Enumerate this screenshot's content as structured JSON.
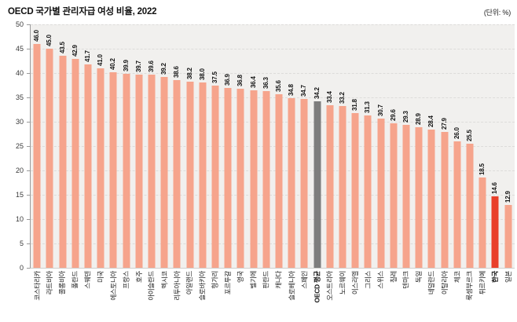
{
  "header": {
    "title": "OECD 국가별 관리자급 여성 비율, 2022",
    "unit": "(단위: %)"
  },
  "chart_data": {
    "type": "bar",
    "title": "OECD 국가별 관리자급 여성 비율, 2022",
    "unit_label": "(단위: %)",
    "categories": [
      "코스타리카",
      "라트비아",
      "콜롬비아",
      "폴란드",
      "스웨덴",
      "미국",
      "에스토니아",
      "프랑스",
      "호주",
      "아이슬란드",
      "멕시코",
      "리투아니아",
      "아일랜드",
      "슬로바키아",
      "헝가리",
      "포르투갈",
      "영국",
      "벨기에",
      "핀란드",
      "캐나다",
      "슬로베니아",
      "스페인",
      "OECD 평균",
      "오스트리아",
      "노르웨이",
      "이스라엘",
      "그리스",
      "스위스",
      "칠레",
      "덴마크",
      "독일",
      "네덜란드",
      "이탈리아",
      "체코",
      "룩셈부르크",
      "튀르키예",
      "한국",
      "일본"
    ],
    "values": [
      46.0,
      45.0,
      43.5,
      42.9,
      41.7,
      41.0,
      40.2,
      39.9,
      39.7,
      39.6,
      39.2,
      38.6,
      38.2,
      38.0,
      37.5,
      36.9,
      36.8,
      36.4,
      36.3,
      35.6,
      34.8,
      34.7,
      34.2,
      33.4,
      33.2,
      31.8,
      31.3,
      30.7,
      29.6,
      29.3,
      28.9,
      28.4,
      27.9,
      26.0,
      25.5,
      18.5,
      14.6,
      12.9
    ],
    "value_format": "one-decimal",
    "xlabel": "",
    "ylabel": "",
    "ylim": [
      0,
      50
    ],
    "yticks": [
      0,
      5,
      10,
      15,
      20,
      25,
      30,
      35,
      40,
      45,
      50
    ],
    "grid": "horizontal-dashed",
    "legend": "none",
    "colors": {
      "bar_default": "#f6a48c",
      "bar_oecd_avg": "#7d7d7d",
      "bar_korea": "#e9402b",
      "plot_background": "#f1f0ee",
      "gridline": "#dddcda"
    },
    "highlighted_categories": {
      "OECD 평균": "#7d7d7d",
      "한국": "#e9402b"
    },
    "bold_categories": [
      "OECD 평균",
      "한국"
    ]
  }
}
